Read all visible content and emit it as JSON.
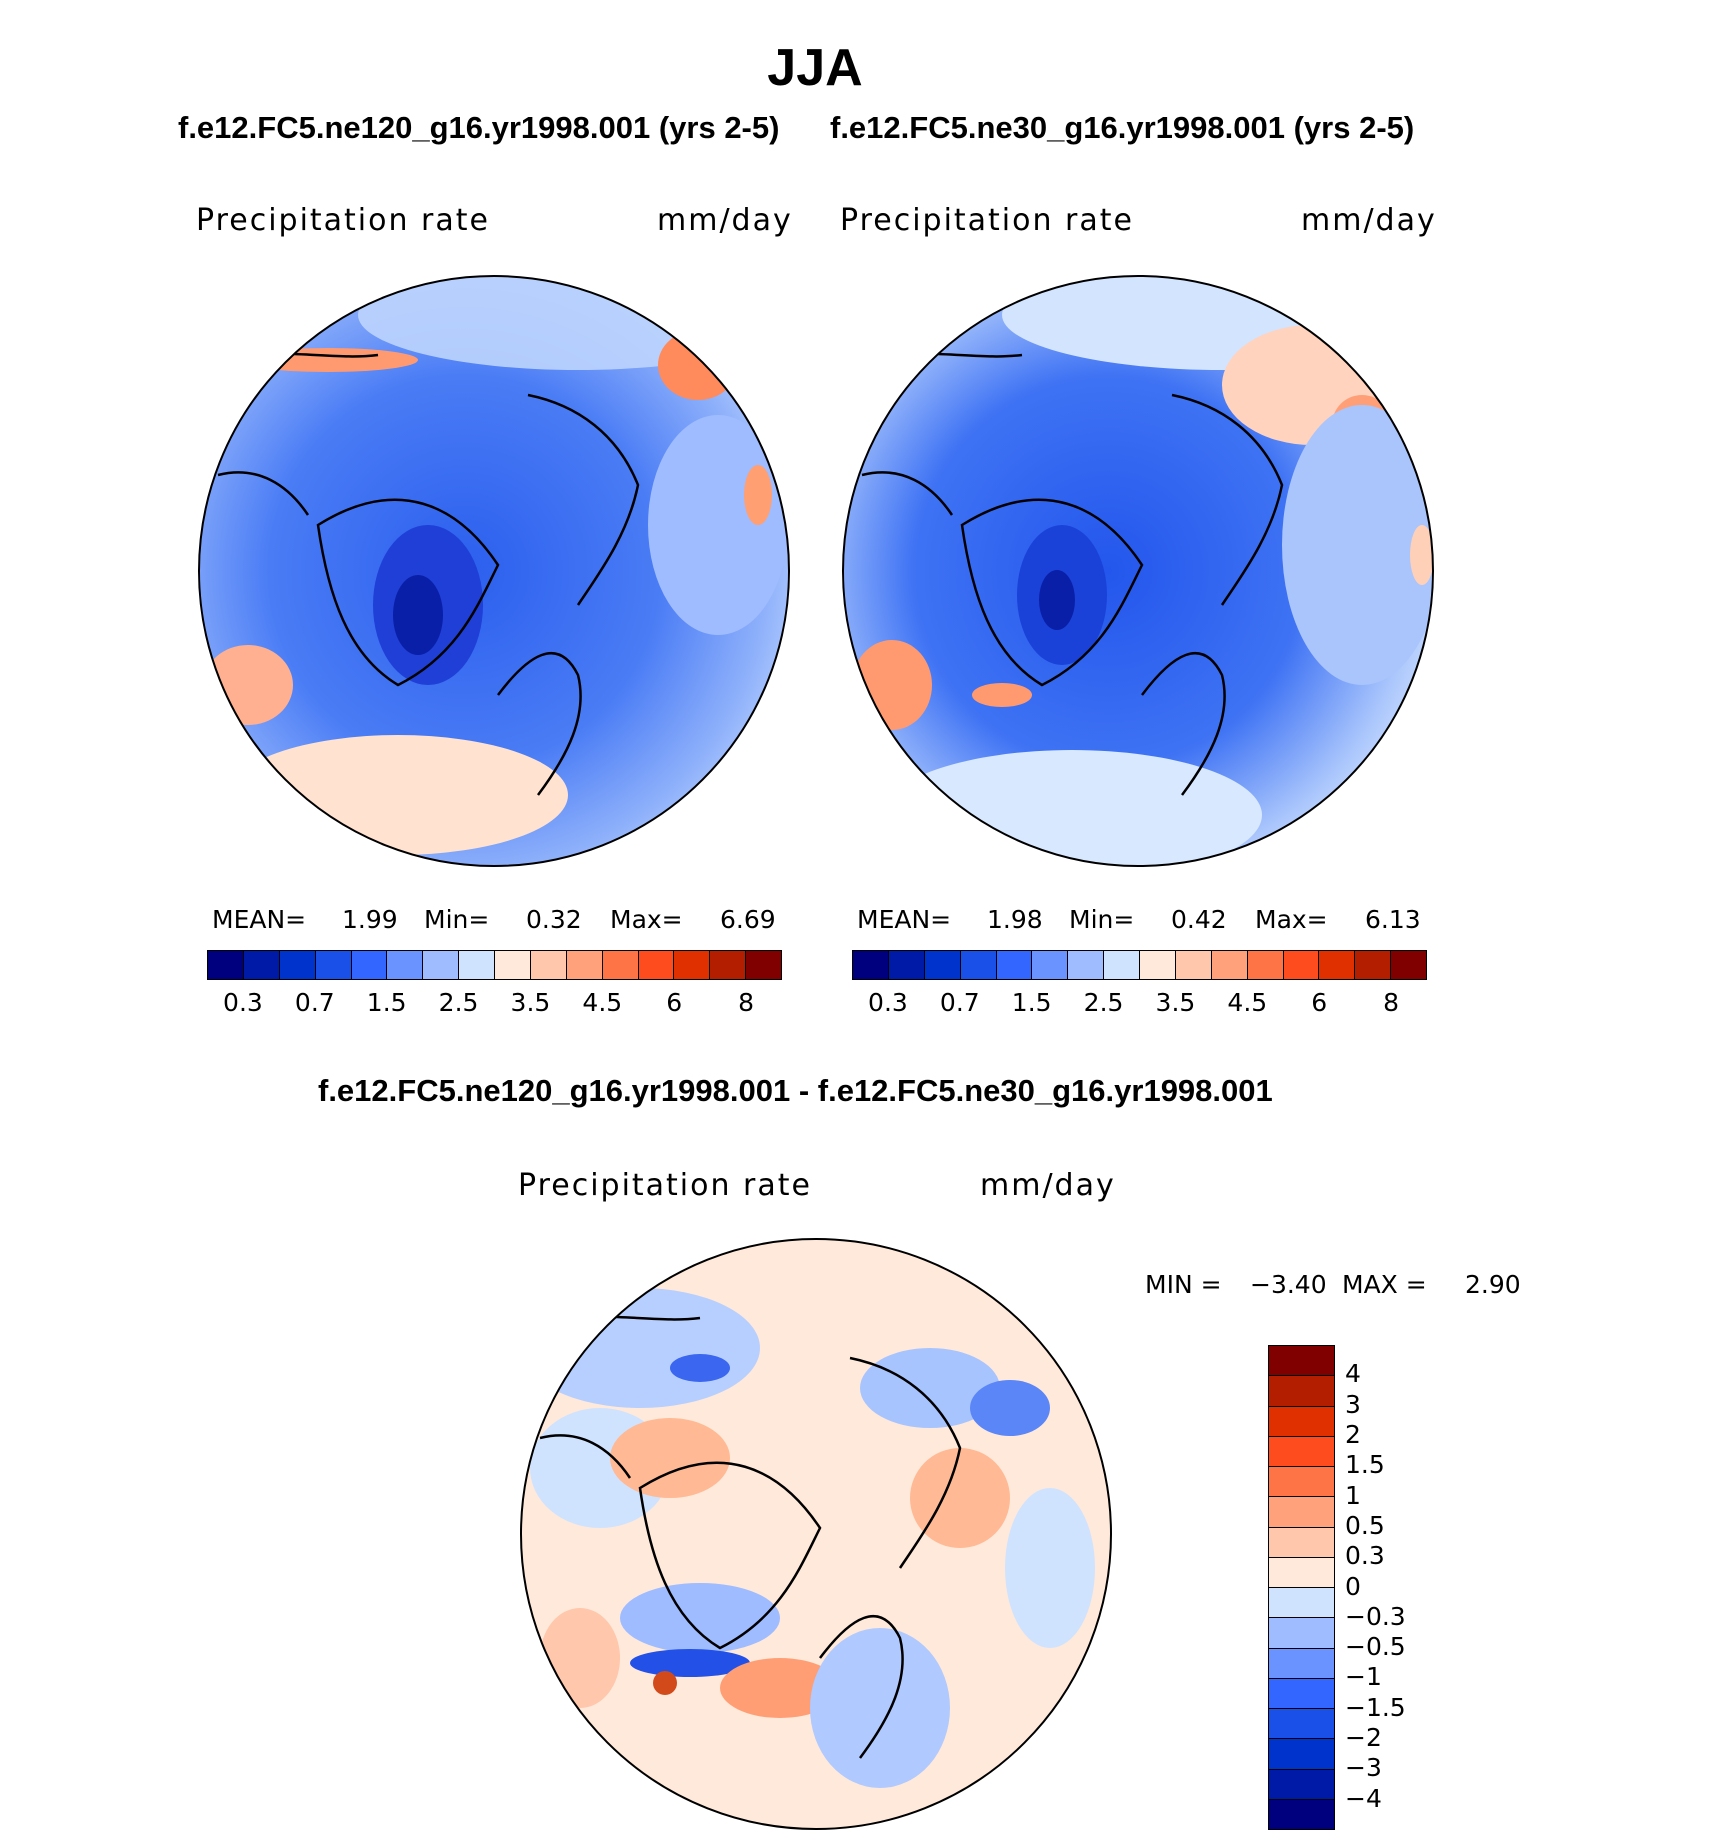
{
  "title": "JJA",
  "panels": [
    {
      "case": "f.e12.FC5.ne120_g16.yr1998.001 (yrs 2-5)",
      "variable": "Precipitation rate",
      "units": "mm/day",
      "stats": {
        "mean_label": "MEAN=",
        "mean": "1.99",
        "min_label": "Min=",
        "min": "0.32",
        "max_label": "Max=",
        "max": "6.69"
      }
    },
    {
      "case": "f.e12.FC5.ne30_g16.yr1998.001 (yrs 2-5)",
      "variable": "Precipitation rate",
      "units": "mm/day",
      "stats": {
        "mean_label": "MEAN=",
        "mean": "1.98",
        "min_label": "Min=",
        "min": "0.42",
        "max_label": "Max=",
        "max": "6.13"
      }
    }
  ],
  "diff": {
    "title": "f.e12.FC5.ne120_g16.yr1998.001 - f.e12.FC5.ne30_g16.yr1998.001",
    "variable": "Precipitation rate",
    "units": "mm/day",
    "min_label": "MIN =",
    "min": "−3.40",
    "max_label": "MAX =",
    "max": "2.90"
  },
  "colorbar_abs": {
    "colors": [
      "#00007f",
      "#001aa8",
      "#0033cc",
      "#1a4fe8",
      "#3366ff",
      "#6b93ff",
      "#9ebcff",
      "#cfe3ff",
      "#ffe9da",
      "#ffc7ab",
      "#ffa27c",
      "#ff7447",
      "#ff4c1f",
      "#e03000",
      "#b31e00",
      "#800000"
    ],
    "ticks": [
      "0.3",
      "0.7",
      "1.5",
      "2.5",
      "3.5",
      "4.5",
      "6",
      "8"
    ]
  },
  "colorbar_diff": {
    "colors": [
      "#800000",
      "#b31e00",
      "#e03000",
      "#ff4c1f",
      "#ff7447",
      "#ffa27c",
      "#ffc7ab",
      "#ffe9da",
      "#cfe3ff",
      "#9ebcff",
      "#6b93ff",
      "#3366ff",
      "#1a4fe8",
      "#0033cc",
      "#001aa8",
      "#00007f"
    ],
    "ticks": [
      "4",
      "3",
      "2",
      "1.5",
      "1",
      "0.5",
      "0.3",
      "0",
      "−0.3",
      "−0.5",
      "−1",
      "−1.5",
      "−2",
      "−3",
      "−4"
    ]
  }
}
